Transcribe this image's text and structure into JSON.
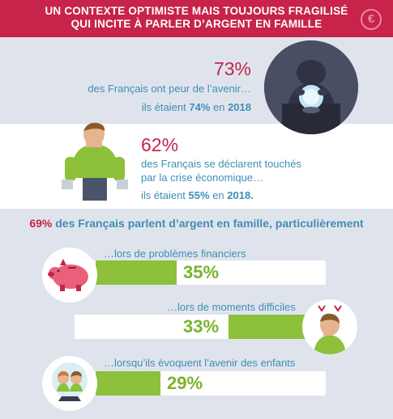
{
  "header": {
    "line1": "UN CONTEXTE OPTIMISTE MAIS TOUJOURS FRAGILISÉ",
    "line2": "QUI INCITE À PARLER D’ARGENT EN FAMILLE",
    "coin_symbol": "€"
  },
  "stat1": {
    "pct": "73%",
    "line1": "des Français ont peur de l’avenir…",
    "line2_pre": "ils étaient ",
    "line2_pct": "74%",
    "line2_mid": " en ",
    "line2_year": "2018"
  },
  "stat2": {
    "pct": "62%",
    "line1": "des Français se déclarent touchés",
    "line2": "par la crise économique…",
    "line3_pre": "ils étaient ",
    "line3_pct": "55%",
    "line3_mid": " en ",
    "line3_year": "2018."
  },
  "family": {
    "pct": "69%",
    "text": " des Français parlent d’argent en famille, particulièrement"
  },
  "bars": [
    {
      "label": "…lors de problèmes financiers",
      "value": "35%",
      "icon": "piggy-bank-icon"
    },
    {
      "label": "…lors de moments difficiles",
      "value": "33%",
      "icon": "worried-person-icon"
    },
    {
      "label": "…lorsqu’ils évoquent l’avenir des enfants",
      "value": "29%",
      "icon": "children-crystal-ball-icon"
    }
  ],
  "colors": {
    "accent": "#c8234a",
    "blue": "#3f8eb6",
    "green": "#8dc03b",
    "band": "#dfe4ec"
  }
}
